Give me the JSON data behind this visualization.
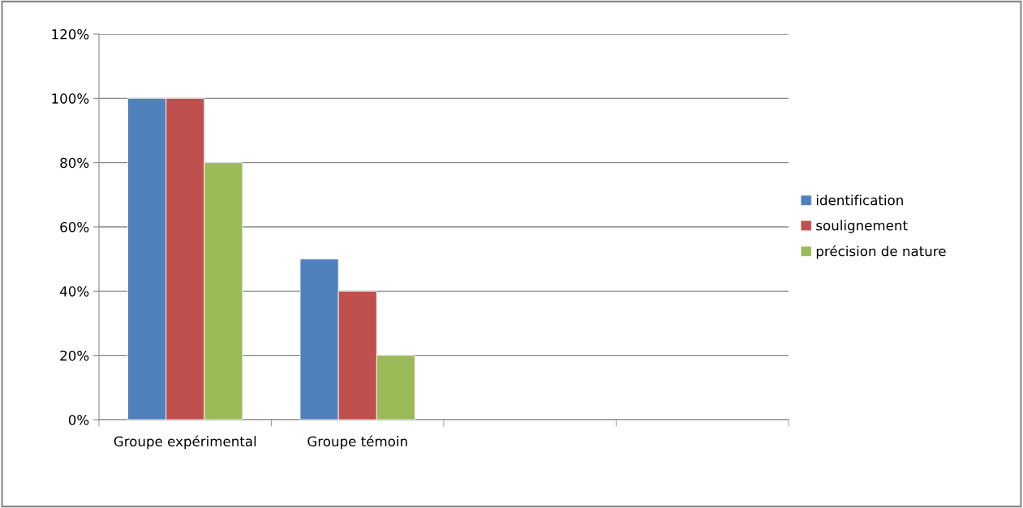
{
  "chart_data": {
    "type": "bar",
    "categories": [
      "Groupe expérimental",
      "Groupe témoin",
      null,
      null
    ],
    "series": [
      {
        "name": "identification",
        "color": "#4f81bd",
        "values": [
          100,
          50,
          null,
          null
        ]
      },
      {
        "name": "soulignement",
        "color": "#c0504d",
        "values": [
          100,
          40,
          null,
          null
        ]
      },
      {
        "name": "précision de nature",
        "color": "#9bbb59",
        "values": [
          80,
          20,
          null,
          null
        ]
      }
    ],
    "ylim": [
      0,
      120
    ],
    "yticks": [
      {
        "value": 0,
        "label": "0%"
      },
      {
        "value": 20,
        "label": "20%"
      },
      {
        "value": 40,
        "label": "40%"
      },
      {
        "value": 60,
        "label": "60%"
      },
      {
        "value": 80,
        "label": "80%"
      },
      {
        "value": 100,
        "label": "100%"
      },
      {
        "value": 120,
        "label": "120%"
      }
    ],
    "grid": "y",
    "legend": "right"
  }
}
